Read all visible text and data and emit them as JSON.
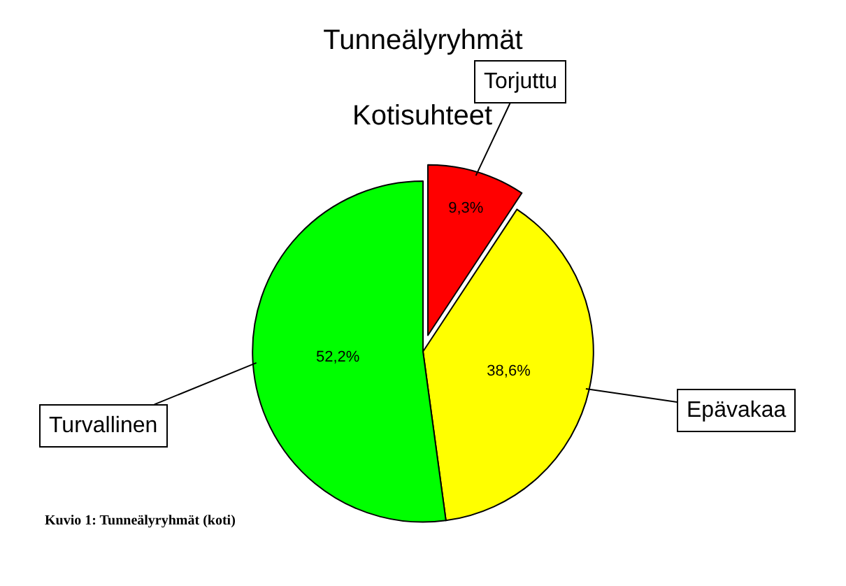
{
  "chart_data": {
    "type": "pie",
    "title": "Tunneälyryhmät",
    "subtitle": "Kotisuhteet",
    "categories": [
      "Torjuttu",
      "Epävakaa",
      "Turvallinen"
    ],
    "values": [
      9.3,
      38.6,
      52.2
    ],
    "value_labels": [
      "9,3%",
      "38,6%",
      "52,2%"
    ],
    "colors": [
      "#ff0000",
      "#ffff00",
      "#00ff00"
    ],
    "annotations": [
      "Kuvio 1: Tunneälyryhmät (koti)"
    ],
    "legend": false
  }
}
